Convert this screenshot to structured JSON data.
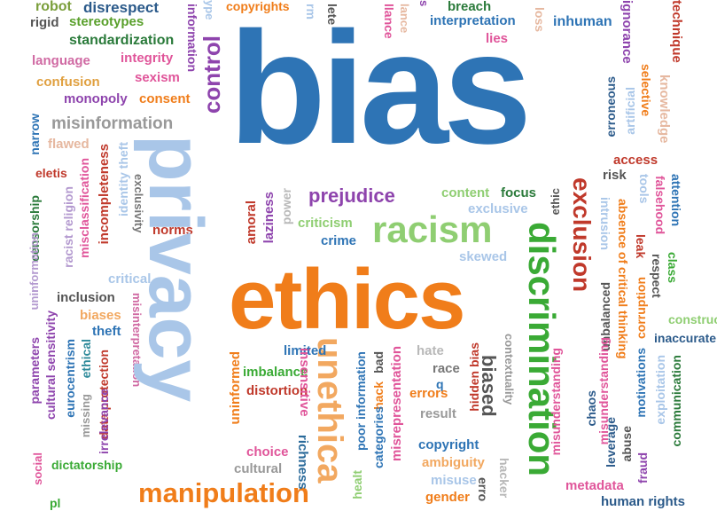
{
  "words": {
    "bias": "bias",
    "ethics": "ethics",
    "privacy": "privacy",
    "discrimination": "discrimination",
    "unethical": "unethica",
    "racism": "racism",
    "prejudice": "prejudice",
    "manipulation": "manipulation",
    "exclusion": "exclusion",
    "control": "control",
    "robot": "robot",
    "disrespect": "disrespect",
    "copyrights": "copyrights",
    "breach": "breach",
    "rigid": "rigid",
    "stereotypes": "stereotypes",
    "interpretation": "interpretation",
    "inhuman": "inhuman",
    "lies": "lies",
    "standardization": "standardization",
    "integrity": "integrity",
    "language": "language",
    "sexism": "sexism",
    "confusion": "confusion",
    "monopoly": "monopoly",
    "consent": "consent",
    "misinformation": "misinformation",
    "flawed": "flawed",
    "narrow": "narrow",
    "eletis": "eletis",
    "incompleteness": "incompleteness",
    "misclassification": "misclassification",
    "racist_religion": "racist religion",
    "censorship": "censorship",
    "uninformation": "uninformation",
    "identity_theft": "identity theft",
    "exclusivity": "exclusivity",
    "norms": "norms",
    "amoral": "amoral",
    "laziness": "laziness",
    "power": "power",
    "criticism": "criticism",
    "crime": "crime",
    "content": "content",
    "focus": "focus",
    "exclusive": "exclusive",
    "skewed": "skewed",
    "critical": "critical",
    "inclusion": "inclusion",
    "biases": "biases",
    "theft": "theft",
    "misinterpretation": "misinterpretation",
    "cultural_sensitivity": "cultural sensitivity",
    "parameters": "parameters",
    "ethical": "ethical",
    "data_protection": "data protection",
    "eurocentrism": "eurocentrism",
    "irrelevance": "irrelevance",
    "missing": "missing",
    "dictatorship": "dictatorship",
    "social": "social",
    "limited": "limited",
    "hate": "hate",
    "imbalance": "imbalance",
    "distortion": "distortion",
    "uninformed": "uninformed",
    "choice": "choice",
    "cultural": "cultural",
    "insensitive": "insensitive",
    "richness": "richness",
    "misrepresentation": "misrepresentation",
    "poor_information": "poor information",
    "bad": "bad",
    "hack": "hack",
    "categories": "categories",
    "race": "race",
    "q": "q",
    "errors": "errors",
    "hidden_bias": "hidden bias",
    "biased": "biased",
    "result": "result",
    "contextuality": "contextuality",
    "copyright": "copyright",
    "ambiguity": "ambiguity",
    "misuse": "misuse",
    "gender": "gender",
    "hacker": "hacker",
    "health": "healt",
    "error": "erro",
    "unbalanced": "unbalanced",
    "misunderstanding": "misunderstanding",
    "misunderstanding_2": "misunderstanding",
    "chaos": "chaos",
    "metadata": "metadata",
    "human_rights": "human rights",
    "ethic": "ethic",
    "risk": "risk",
    "access": "access",
    "erroneous": "erroneous",
    "artificial": "artificial",
    "selective": "selective",
    "ignorance": "ignorance",
    "loss": "loss",
    "knowledge": "knowledge",
    "technique": "technique",
    "tools": "tools",
    "falsehood": "falsehood",
    "attention": "attention",
    "intrusion": "intrusion",
    "absence_of_critical_thinking": "absence of critical thinking",
    "leak": "leak",
    "respect": "respect",
    "class": "class",
    "corruption": "corruption",
    "construct": "construct",
    "inaccurate": "inaccurate",
    "motivations": "motivations",
    "exploitation": "exploitation",
    "communication": "communication",
    "abuse": "abuse",
    "leverage": "leverage",
    "fraud": "fraud",
    "information": "information",
    "ype": "ype",
    "rm": "rm",
    "lete": "lete",
    "llance": "llance",
    "lance": "lance",
    "s": "s",
    "pl": "pl"
  },
  "colors": {
    "blue": "#2e74b5",
    "orange": "#f07d1a",
    "light_blue": "#a9c6e8",
    "green": "#3aaa35",
    "red": "#c0392b",
    "purple": "#8e44ad",
    "pink": "#e0559a",
    "dark_gray": "#555555"
  }
}
